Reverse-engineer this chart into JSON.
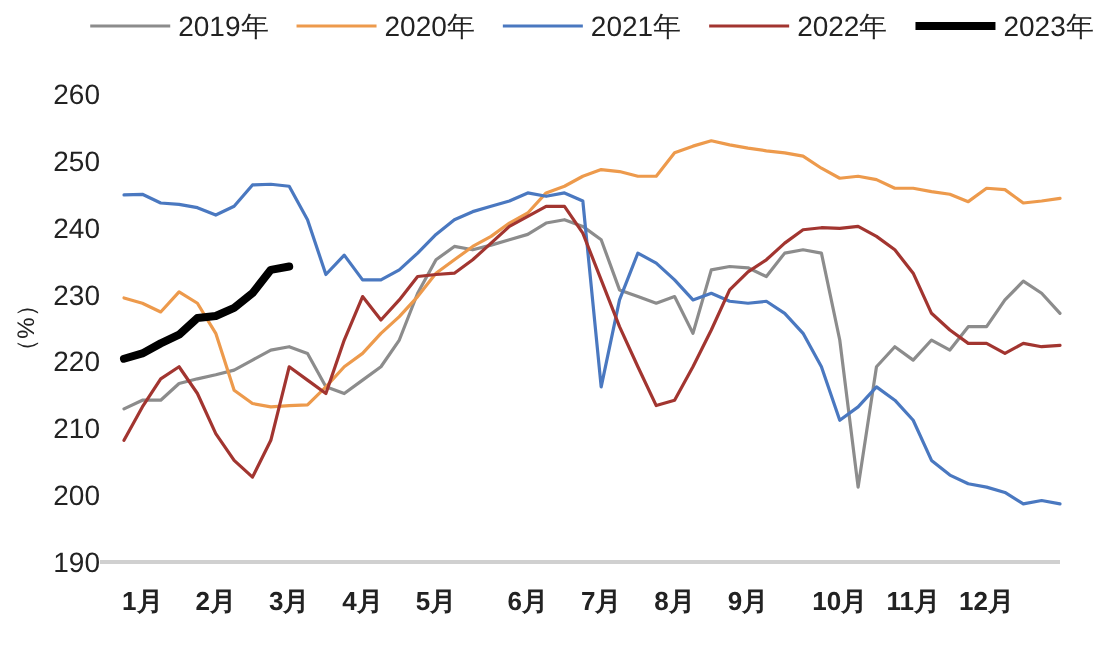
{
  "chart_data": {
    "type": "line",
    "ylabel": "（%）",
    "ylim": [
      190,
      260
    ],
    "yticks": [
      190,
      200,
      210,
      220,
      230,
      240,
      250,
      260
    ],
    "grid": false,
    "legend": "top",
    "marker": "none",
    "line_style": "solid",
    "categories": [
      null,
      "1月",
      null,
      null,
      null,
      "2月",
      null,
      null,
      null,
      "3月",
      null,
      null,
      null,
      "4月",
      null,
      null,
      null,
      "5月",
      null,
      null,
      null,
      null,
      "6月",
      null,
      null,
      null,
      "7月",
      null,
      null,
      null,
      "8月",
      null,
      null,
      null,
      "9月",
      null,
      null,
      null,
      null,
      "10月",
      null,
      null,
      null,
      "11月",
      null,
      null,
      null,
      "12月",
      null,
      null,
      null,
      null
    ],
    "series": [
      {
        "name": "2019年",
        "color": "#8c8c8c",
        "values": [
          212.9,
          214.2,
          214.2,
          216.7,
          217.4,
          218,
          218.7,
          220.2,
          221.7,
          222.2,
          221.2,
          216.2,
          215.2,
          217.2,
          219.2,
          223.2,
          230.2,
          235.2,
          237.2,
          236.7,
          237.4,
          238.2,
          239,
          240.7,
          241.2,
          240.2,
          238.2,
          230.7,
          229.7,
          228.7,
          229.7,
          224.2,
          233.7,
          234.2,
          234,
          232.7,
          236.2,
          236.7,
          236.2,
          223.2,
          201.2,
          219.2,
          222.2,
          220.2,
          223.2,
          221.7,
          225.2,
          225.2,
          229.2,
          232,
          230.2,
          227.2
        ]
      },
      {
        "name": "2020年",
        "color": "#ed9a4c",
        "values": [
          229.5,
          228.7,
          227.4,
          230.4,
          228.7,
          224.2,
          215.7,
          213.7,
          213.2,
          213.4,
          213.5,
          216.2,
          219.2,
          221.2,
          224.2,
          226.7,
          229.7,
          233.2,
          235.2,
          237.2,
          238.7,
          240.7,
          242.2,
          245.2,
          246.2,
          247.7,
          248.7,
          248.4,
          247.7,
          247.7,
          251.2,
          252.2,
          253,
          252.4,
          251.9,
          251.5,
          251.2,
          250.7,
          248.9,
          247.4,
          247.7,
          247.2,
          245.9,
          245.9,
          245.4,
          245,
          243.9,
          245.9,
          245.7,
          243.7,
          244,
          244.4
        ]
      },
      {
        "name": "2021年",
        "color": "#4a78c0",
        "values": [
          244.9,
          245,
          243.7,
          243.5,
          243,
          241.9,
          243.2,
          246.4,
          246.5,
          246.2,
          241.2,
          233,
          235.9,
          232.2,
          232.2,
          233.7,
          236.2,
          239,
          241.2,
          242.4,
          243.2,
          244,
          245.2,
          244.7,
          245.2,
          244,
          216.2,
          229.2,
          236.2,
          234.7,
          232.2,
          229.2,
          230.2,
          229,
          228.7,
          229,
          227.2,
          224.2,
          219.2,
          211.2,
          213.2,
          216.2,
          214.2,
          211.2,
          205.2,
          203,
          201.7,
          201.2,
          200.4,
          198.7,
          199.2,
          198.7
        ]
      },
      {
        "name": "2022年",
        "color": "#a23530",
        "values": [
          208.2,
          213.2,
          217.4,
          219.2,
          215.2,
          209.2,
          205.2,
          202.7,
          208.2,
          219.2,
          217.2,
          215.2,
          223.2,
          229.7,
          226.2,
          229.2,
          232.7,
          233,
          233.2,
          235.2,
          237.7,
          240.2,
          241.7,
          243.2,
          243.2,
          239.2,
          232.2,
          225.2,
          219.2,
          213.4,
          214.2,
          219.2,
          224.7,
          230.7,
          233.4,
          235.2,
          237.7,
          239.7,
          240,
          239.9,
          240.2,
          238.7,
          236.7,
          233.2,
          227.2,
          224.7,
          222.7,
          222.7,
          221.2,
          222.7,
          222.2,
          222.4
        ]
      },
      {
        "name": "2023年",
        "color": "#000000",
        "values": [
          220.4,
          221.2,
          222.7,
          224,
          226.5,
          226.8,
          228,
          230.2,
          233.7,
          234.2,
          null,
          null,
          null,
          null,
          null,
          null,
          null,
          null,
          null,
          null,
          null,
          null,
          null,
          null,
          null,
          null,
          null,
          null,
          null,
          null,
          null,
          null,
          null,
          null,
          null,
          null,
          null,
          null,
          null,
          null,
          null,
          null,
          null,
          null,
          null,
          null,
          null,
          null,
          null,
          null,
          null,
          null
        ]
      }
    ]
  }
}
